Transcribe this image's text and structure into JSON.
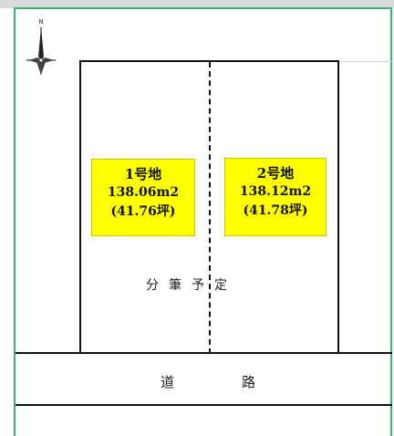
{
  "compass": {
    "north_label": "N",
    "icon": "north-arrow-icon"
  },
  "lots": [
    {
      "name": "1号地",
      "area": "138.06m2",
      "tsubo": "(41.76坪)"
    },
    {
      "name": "2号地",
      "area": "138.12m2",
      "tsubo": "(41.78坪)"
    }
  ],
  "plan_note": "分筆予定",
  "road": {
    "char1": "道",
    "char2": "路"
  },
  "colors": {
    "label_fill": "#ffff00",
    "frame_border": "#3cb371",
    "line": "#111111"
  }
}
